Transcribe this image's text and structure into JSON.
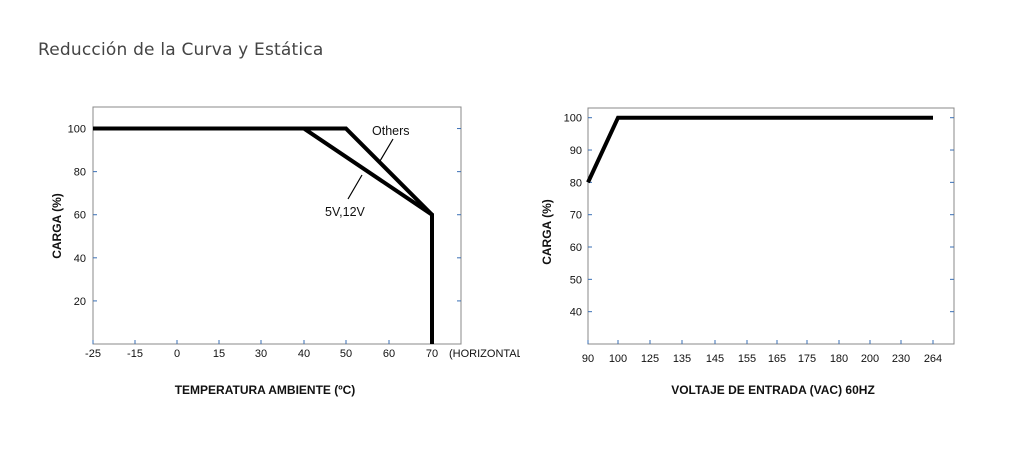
{
  "page": {
    "heading": "Reducción de la Curva y Estática"
  },
  "colors": {
    "line": "#000000",
    "frame": "#888888",
    "tick_mark": "#3a6fb5"
  },
  "chart_data": [
    {
      "type": "line",
      "title": "",
      "xlabel": "TEMPERATURA AMBIENTE (ºC)",
      "ylabel": "CARGA (%)",
      "x_ticks": [
        "-25",
        "-15",
        "0",
        "15",
        "30",
        "40",
        "50",
        "60",
        "70"
      ],
      "x_suffix": "(HORIZONTAL)",
      "y_ticks": [
        "100",
        "80",
        "60",
        "40",
        "20"
      ],
      "ylim": [
        0,
        110
      ],
      "annotations": [
        "Others",
        "5V,12V"
      ],
      "series": [
        {
          "name": "Others",
          "x": [
            "-25",
            "40",
            "50",
            "70",
            "70"
          ],
          "y": [
            100,
            100,
            100,
            60,
            0
          ]
        },
        {
          "name": "5V,12V",
          "x": [
            "-25",
            "40",
            "70",
            "70"
          ],
          "y": [
            100,
            100,
            60,
            0
          ]
        }
      ]
    },
    {
      "type": "line",
      "title": "",
      "xlabel": "VOLTAJE DE ENTRADA (VAC) 60HZ",
      "ylabel": "CARGA (%)",
      "x_ticks": [
        "90",
        "100",
        "125",
        "135",
        "145",
        "155",
        "165",
        "175",
        "180",
        "200",
        "230",
        "264"
      ],
      "y_ticks": [
        "100",
        "90",
        "80",
        "70",
        "60",
        "50",
        "40"
      ],
      "ylim": [
        30,
        103
      ],
      "series": [
        {
          "x": [
            "90",
            "100",
            "264"
          ],
          "y": [
            80,
            100,
            100
          ]
        }
      ]
    }
  ]
}
